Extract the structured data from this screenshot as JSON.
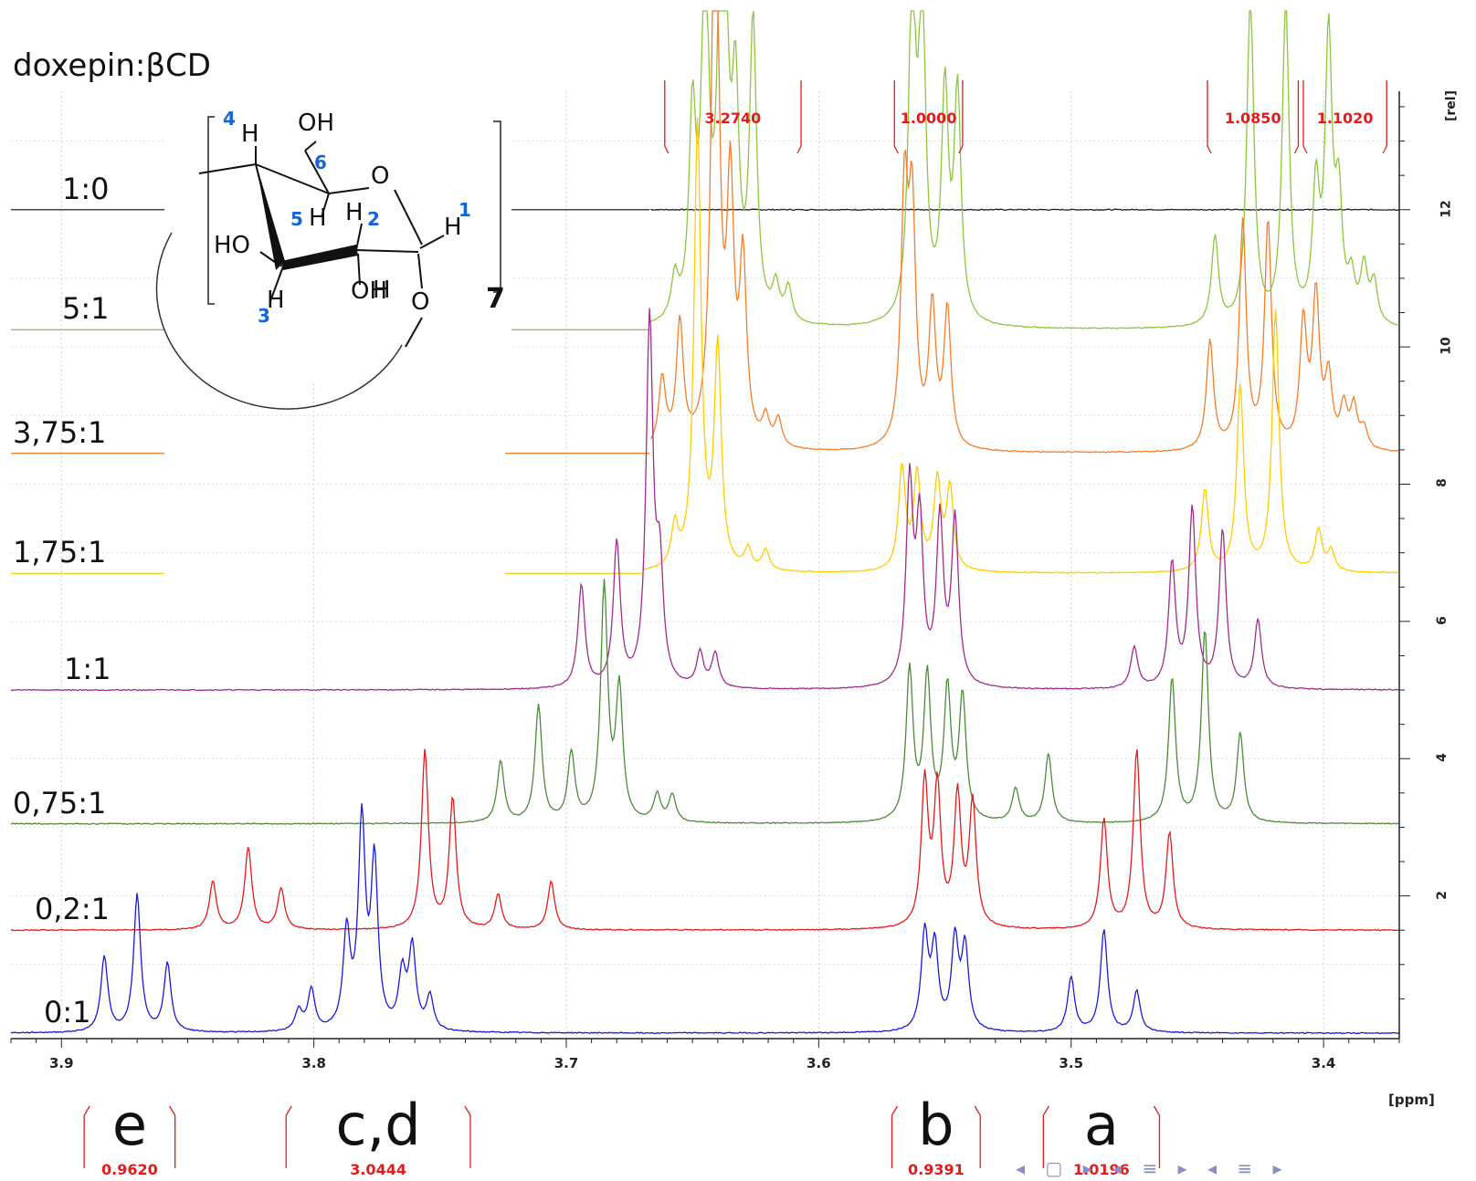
{
  "title": "doxepin:βCD",
  "chart_data": {
    "type": "line",
    "xlabel": "[ppm]",
    "ylabel": "[rel]",
    "xlim": [
      3.92,
      3.37
    ],
    "ylim": [
      0,
      14
    ],
    "x_ticks": [
      "3.9",
      "3.8",
      "3.7",
      "3.6",
      "3.5",
      "3.4"
    ],
    "y_ticks": [
      "2",
      "4",
      "6",
      "8",
      "10",
      "12"
    ],
    "series": [
      {
        "name": "1:0",
        "color": "#222222",
        "baseline": 12.0,
        "peaks": []
      },
      {
        "name": "5:1",
        "color": "#8dc63f",
        "baseline": 10.25,
        "peaks": [
          [
            3.657,
            0.6
          ],
          [
            3.65,
            2.9
          ],
          [
            3.645,
            5.2
          ],
          [
            3.638,
            9.0
          ],
          [
            3.633,
            3.0
          ],
          [
            3.626,
            4.3
          ],
          [
            3.617,
            0.5
          ],
          [
            3.612,
            0.5
          ],
          [
            3.563,
            4.9
          ],
          [
            3.559,
            4.5
          ],
          [
            3.55,
            3.3
          ],
          [
            3.545,
            3.3
          ],
          [
            3.443,
            1.3
          ],
          [
            3.429,
            4.9
          ],
          [
            3.415,
            4.7
          ],
          [
            3.403,
            1.9
          ],
          [
            3.398,
            4.1
          ],
          [
            3.394,
            1.7
          ],
          [
            3.389,
            0.6
          ],
          [
            3.384,
            0.8
          ],
          [
            3.38,
            0.6
          ]
        ]
      },
      {
        "name": "3,75:1",
        "color": "#f47d2a",
        "baseline": 8.45,
        "peaks": [
          [
            3.662,
            1.0
          ],
          [
            3.655,
            1.8
          ],
          [
            3.641,
            9.5
          ],
          [
            3.635,
            3.6
          ],
          [
            3.63,
            2.6
          ],
          [
            3.621,
            0.4
          ],
          [
            3.616,
            0.4
          ],
          [
            3.566,
            3.6
          ],
          [
            3.563,
            3.3
          ],
          [
            3.555,
            2.0
          ],
          [
            3.549,
            2.0
          ],
          [
            3.445,
            1.6
          ],
          [
            3.432,
            3.3
          ],
          [
            3.422,
            3.3
          ],
          [
            3.408,
            1.8
          ],
          [
            3.403,
            2.2
          ],
          [
            3.398,
            1.0
          ],
          [
            3.392,
            0.6
          ],
          [
            3.388,
            0.6
          ],
          [
            3.384,
            0.3
          ]
        ]
      },
      {
        "name": "1,75:1",
        "color": "#ffcc00",
        "baseline": 6.7,
        "peaks": [
          [
            3.657,
            0.6
          ],
          [
            3.648,
            6.5
          ],
          [
            3.64,
            3.2
          ],
          [
            3.628,
            0.3
          ],
          [
            3.621,
            0.3
          ],
          [
            3.567,
            1.5
          ],
          [
            3.561,
            1.4
          ],
          [
            3.553,
            1.3
          ],
          [
            3.548,
            1.2
          ],
          [
            3.447,
            1.2
          ],
          [
            3.433,
            2.7
          ],
          [
            3.419,
            3.8
          ],
          [
            3.402,
            0.6
          ],
          [
            3.397,
            0.3
          ]
        ]
      },
      {
        "name": "1:1",
        "color": "#a02c8e",
        "baseline": 5.0,
        "peaks": [
          [
            3.694,
            1.5
          ],
          [
            3.68,
            2.1
          ],
          [
            3.667,
            5.3
          ],
          [
            3.663,
            1.6
          ],
          [
            3.647,
            0.5
          ],
          [
            3.641,
            0.5
          ],
          [
            3.564,
            2.9
          ],
          [
            3.56,
            2.3
          ],
          [
            3.552,
            2.4
          ],
          [
            3.546,
            2.4
          ],
          [
            3.475,
            0.6
          ],
          [
            3.46,
            1.8
          ],
          [
            3.452,
            2.6
          ],
          [
            3.44,
            2.3
          ],
          [
            3.426,
            1.0
          ]
        ]
      },
      {
        "name": "0,75:1",
        "color": "#4d8a3a",
        "baseline": 3.05,
        "peaks": [
          [
            3.726,
            0.9
          ],
          [
            3.711,
            1.7
          ],
          [
            3.698,
            1.0
          ],
          [
            3.685,
            3.4
          ],
          [
            3.679,
            1.9
          ],
          [
            3.664,
            0.4
          ],
          [
            3.658,
            0.4
          ],
          [
            3.564,
            2.2
          ],
          [
            3.557,
            2.1
          ],
          [
            3.549,
            1.9
          ],
          [
            3.543,
            1.8
          ],
          [
            3.522,
            0.5
          ],
          [
            3.509,
            1.0
          ],
          [
            3.46,
            2.1
          ],
          [
            3.447,
            2.8
          ],
          [
            3.433,
            1.3
          ]
        ]
      },
      {
        "name": "0,2:1",
        "color": "#e41a1c",
        "baseline": 1.5,
        "peaks": [
          [
            3.84,
            0.7
          ],
          [
            3.826,
            1.2
          ],
          [
            3.813,
            0.6
          ],
          [
            3.756,
            2.6
          ],
          [
            3.745,
            1.9
          ],
          [
            3.727,
            0.5
          ],
          [
            3.706,
            0.7
          ],
          [
            3.558,
            2.1
          ],
          [
            3.553,
            2.0
          ],
          [
            3.545,
            1.9
          ],
          [
            3.539,
            1.8
          ],
          [
            3.487,
            1.6
          ],
          [
            3.474,
            2.6
          ],
          [
            3.461,
            1.4
          ]
        ]
      },
      {
        "name": "0:1",
        "color": "#1a1adb",
        "baseline": 0.0,
        "peaks": [
          [
            3.883,
            1.1
          ],
          [
            3.87,
            2.0
          ],
          [
            3.858,
            1.0
          ],
          [
            3.806,
            0.3
          ],
          [
            3.801,
            0.6
          ],
          [
            3.787,
            1.4
          ],
          [
            3.781,
            3.0
          ],
          [
            3.776,
            2.4
          ],
          [
            3.765,
            0.8
          ],
          [
            3.761,
            1.2
          ],
          [
            3.754,
            0.5
          ],
          [
            3.558,
            1.4
          ],
          [
            3.554,
            1.2
          ],
          [
            3.546,
            1.3
          ],
          [
            3.542,
            1.2
          ],
          [
            3.5,
            0.8
          ],
          [
            3.487,
            1.5
          ],
          [
            3.474,
            0.6
          ]
        ]
      }
    ]
  },
  "top_integrals": [
    {
      "value": "3.2740",
      "from": 3.661,
      "to": 3.607
    },
    {
      "value": "1.0000",
      "from": 3.57,
      "to": 3.543
    },
    {
      "value": "1.0850",
      "from": 3.446,
      "to": 3.41
    },
    {
      "value": "1.1020",
      "from": 3.408,
      "to": 3.375
    }
  ],
  "bottom_integrals": [
    {
      "label": "e",
      "value": "0.9620",
      "from": 3.891,
      "to": 3.855
    },
    {
      "label": "c,d",
      "value": "3.0444",
      "from": 3.811,
      "to": 3.738
    },
    {
      "label": "b",
      "value": "0.9391",
      "from": 3.571,
      "to": 3.536
    },
    {
      "label": "a",
      "value": "1.0196",
      "from": 3.511,
      "to": 3.465
    }
  ],
  "structure": {
    "atoms": [
      "OH",
      "H",
      "H",
      "O",
      "H",
      "H",
      "H",
      "HO",
      "H",
      "OH",
      "O"
    ],
    "position_labels": [
      "4",
      "6",
      "5",
      "2",
      "1",
      "3"
    ],
    "subscript": "7"
  },
  "colors": {
    "integral": "#e41a1c",
    "numbers": "#1565d8"
  }
}
